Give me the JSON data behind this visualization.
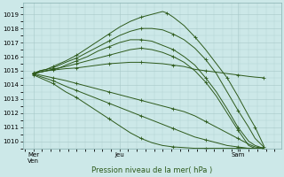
{
  "title": "",
  "xlabel": "Pression niveau de la mer( hPa )",
  "ylabel": "",
  "bg_color": "#cce8e8",
  "grid_color": "#a8c8c8",
  "line_color": "#2d5a1b",
  "ylim": [
    1009.5,
    1019.8
  ],
  "yticks": [
    1010,
    1011,
    1012,
    1013,
    1014,
    1015,
    1016,
    1017,
    1018,
    1019
  ],
  "xlim": [
    0,
    120
  ],
  "xtick_labels": [
    "Mer\nVen",
    "Jeu",
    "Sam"
  ],
  "xtick_positions": [
    5,
    45,
    100
  ],
  "lines": [
    {
      "x": [
        5,
        8,
        11,
        14,
        17,
        20,
        25,
        30,
        35,
        40,
        45,
        50,
        55,
        60,
        65,
        67,
        70,
        75,
        80,
        85,
        90,
        95,
        100,
        105,
        108,
        112
      ],
      "y": [
        1014.8,
        1015.0,
        1015.1,
        1015.3,
        1015.5,
        1015.7,
        1016.1,
        1016.6,
        1017.1,
        1017.6,
        1018.1,
        1018.5,
        1018.8,
        1019.0,
        1019.2,
        1019.1,
        1018.8,
        1018.2,
        1017.4,
        1016.5,
        1015.5,
        1014.5,
        1013.2,
        1011.8,
        1011.0,
        1009.7
      ]
    },
    {
      "x": [
        5,
        8,
        11,
        14,
        17,
        20,
        25,
        30,
        35,
        40,
        45,
        50,
        55,
        60,
        65,
        70,
        75,
        80,
        85,
        90,
        95,
        100,
        105,
        108,
        112
      ],
      "y": [
        1014.8,
        1015.0,
        1015.1,
        1015.2,
        1015.4,
        1015.6,
        1015.9,
        1016.3,
        1016.7,
        1017.1,
        1017.5,
        1017.8,
        1018.0,
        1018.0,
        1017.9,
        1017.6,
        1017.2,
        1016.6,
        1015.8,
        1014.8,
        1013.5,
        1012.2,
        1011.0,
        1010.2,
        1009.6
      ]
    },
    {
      "x": [
        5,
        8,
        11,
        14,
        17,
        20,
        25,
        30,
        35,
        40,
        45,
        50,
        55,
        60,
        65,
        70,
        75,
        80,
        85,
        90,
        95,
        100,
        105,
        108,
        112
      ],
      "y": [
        1014.8,
        1014.9,
        1015.0,
        1015.1,
        1015.2,
        1015.4,
        1015.7,
        1016.0,
        1016.4,
        1016.7,
        1017.0,
        1017.2,
        1017.2,
        1017.1,
        1016.8,
        1016.5,
        1016.0,
        1015.4,
        1014.5,
        1013.5,
        1012.3,
        1011.0,
        1010.0,
        1009.7,
        1009.5
      ]
    },
    {
      "x": [
        5,
        8,
        11,
        14,
        17,
        20,
        25,
        30,
        35,
        40,
        45,
        50,
        55,
        60,
        65,
        70,
        75,
        80,
        85,
        90,
        95,
        100,
        105,
        108,
        112
      ],
      "y": [
        1014.8,
        1014.9,
        1015.0,
        1015.1,
        1015.2,
        1015.3,
        1015.5,
        1015.7,
        1015.9,
        1016.1,
        1016.3,
        1016.5,
        1016.6,
        1016.5,
        1016.3,
        1016.0,
        1015.6,
        1015.0,
        1014.2,
        1013.2,
        1012.0,
        1010.8,
        1009.7,
        1009.5,
        1009.5
      ]
    },
    {
      "x": [
        5,
        8,
        11,
        14,
        17,
        20,
        25,
        30,
        35,
        40,
        45,
        50,
        55,
        60,
        65,
        70,
        75,
        80,
        85,
        90,
        95,
        100,
        105,
        108,
        112
      ],
      "y": [
        1014.85,
        1014.9,
        1015.0,
        1015.05,
        1015.1,
        1015.15,
        1015.2,
        1015.3,
        1015.4,
        1015.5,
        1015.55,
        1015.6,
        1015.6,
        1015.55,
        1015.5,
        1015.4,
        1015.3,
        1015.1,
        1015.0,
        1014.9,
        1014.8,
        1014.7,
        1014.6,
        1014.55,
        1014.5
      ]
    },
    {
      "x": [
        5,
        8,
        11,
        14,
        17,
        20,
        25,
        30,
        35,
        40,
        45,
        50,
        55,
        60,
        65,
        70,
        75,
        80,
        85,
        90,
        95,
        100,
        105,
        108,
        112
      ],
      "y": [
        1014.8,
        1014.7,
        1014.6,
        1014.5,
        1014.4,
        1014.3,
        1014.1,
        1013.9,
        1013.7,
        1013.5,
        1013.3,
        1013.1,
        1012.9,
        1012.7,
        1012.5,
        1012.3,
        1012.1,
        1011.8,
        1011.4,
        1011.0,
        1010.6,
        1010.2,
        1009.8,
        1009.6,
        1009.5
      ]
    },
    {
      "x": [
        5,
        8,
        11,
        14,
        17,
        20,
        25,
        30,
        35,
        40,
        45,
        50,
        55,
        60,
        65,
        70,
        75,
        80,
        85,
        90,
        95,
        100,
        105,
        108,
        112
      ],
      "y": [
        1014.75,
        1014.6,
        1014.45,
        1014.3,
        1014.1,
        1013.9,
        1013.6,
        1013.3,
        1013.0,
        1012.7,
        1012.4,
        1012.1,
        1011.8,
        1011.5,
        1011.2,
        1010.9,
        1010.6,
        1010.3,
        1010.1,
        1009.9,
        1009.7,
        1009.6,
        1009.5,
        1009.5,
        1009.5
      ]
    },
    {
      "x": [
        5,
        8,
        11,
        14,
        17,
        20,
        25,
        30,
        35,
        40,
        45,
        50,
        55,
        60,
        65,
        70,
        75,
        80,
        85,
        90,
        95,
        100,
        105,
        108,
        112
      ],
      "y": [
        1014.7,
        1014.5,
        1014.3,
        1014.1,
        1013.8,
        1013.5,
        1013.1,
        1012.6,
        1012.1,
        1011.6,
        1011.1,
        1010.6,
        1010.2,
        1009.9,
        1009.7,
        1009.6,
        1009.55,
        1009.5,
        1009.5,
        1009.5,
        1009.5,
        1009.5,
        1009.5,
        1009.5,
        1009.5
      ]
    }
  ],
  "marker_style": "+",
  "marker_size": 2.5,
  "line_width": 0.7,
  "dpi": 100,
  "figsize": [
    3.2,
    2.0
  ]
}
